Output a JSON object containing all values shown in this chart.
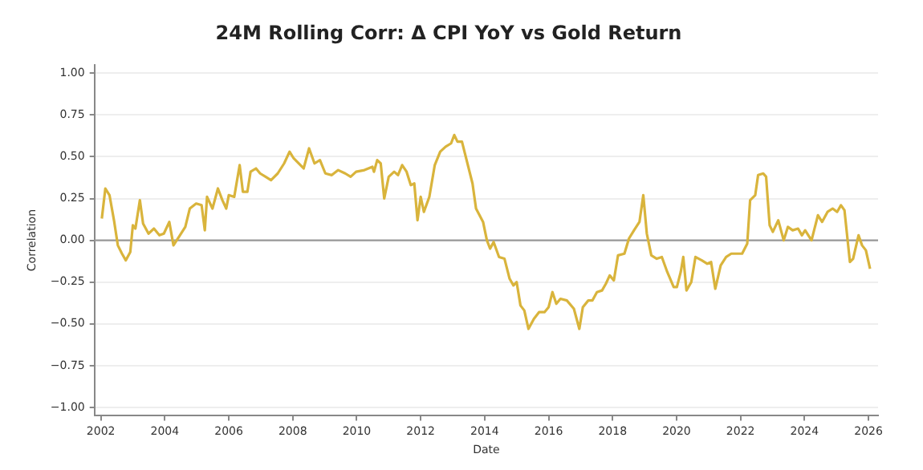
{
  "chart_data": {
    "type": "line",
    "title": "24M Rolling Corr: Δ CPI YoY vs Gold Return",
    "xlabel": "Date",
    "ylabel": "Correlation",
    "x": [
      2002.03,
      2002.14,
      2002.27,
      2002.41,
      2002.53,
      2002.66,
      2002.78,
      2002.92,
      2003.0,
      2003.08,
      2003.22,
      2003.32,
      2003.49,
      2003.66,
      2003.83,
      2003.97,
      2004.14,
      2004.27,
      2004.44,
      2004.64,
      2004.78,
      2004.98,
      2005.15,
      2005.25,
      2005.32,
      2005.49,
      2005.66,
      2005.8,
      2005.92,
      2006.0,
      2006.17,
      2006.34,
      2006.44,
      2006.58,
      2006.68,
      2006.85,
      2006.98,
      2007.15,
      2007.32,
      2007.53,
      2007.73,
      2007.9,
      2008.03,
      2008.34,
      2008.51,
      2008.68,
      2008.85,
      2009.02,
      2009.22,
      2009.42,
      2009.64,
      2009.81,
      2009.98,
      2010.24,
      2010.49,
      2010.54,
      2010.64,
      2010.75,
      2010.86,
      2011.0,
      2011.17,
      2011.29,
      2011.42,
      2011.56,
      2011.69,
      2011.8,
      2011.9,
      2012.0,
      2012.1,
      2012.27,
      2012.44,
      2012.61,
      2012.78,
      2012.95,
      2013.05,
      2013.15,
      2013.29,
      2013.62,
      2013.73,
      2013.95,
      2014.07,
      2014.17,
      2014.28,
      2014.45,
      2014.62,
      2014.78,
      2014.9,
      2015.0,
      2015.12,
      2015.24,
      2015.37,
      2015.54,
      2015.7,
      2015.87,
      2016.0,
      2016.12,
      2016.24,
      2016.37,
      2016.57,
      2016.79,
      2016.96,
      2017.07,
      2017.24,
      2017.37,
      2017.51,
      2017.67,
      2017.79,
      2017.91,
      2018.04,
      2018.17,
      2018.37,
      2018.51,
      2018.67,
      2018.84,
      2018.96,
      2019.07,
      2019.21,
      2019.38,
      2019.54,
      2019.71,
      2019.91,
      2020.01,
      2020.13,
      2020.21,
      2020.31,
      2020.46,
      2020.59,
      2020.79,
      2020.96,
      2021.08,
      2021.21,
      2021.38,
      2021.55,
      2021.71,
      2021.85,
      2022.05,
      2022.21,
      2022.3,
      2022.46,
      2022.55,
      2022.71,
      2022.8,
      2022.91,
      2023.01,
      2023.18,
      2023.35,
      2023.48,
      2023.63,
      2023.8,
      2023.92,
      2024.02,
      2024.22,
      2024.42,
      2024.55,
      2024.72,
      2024.88,
      2025.02,
      2025.14,
      2025.25,
      2025.42,
      2025.52,
      2025.69,
      2025.8,
      2025.92,
      2026.05
    ],
    "series": [
      {
        "color": "#d9b43c",
        "values": [
          0.13,
          0.31,
          0.27,
          0.12,
          -0.03,
          -0.08,
          -0.12,
          -0.07,
          0.09,
          0.07,
          0.24,
          0.1,
          0.04,
          0.07,
          0.03,
          0.04,
          0.11,
          -0.03,
          0.02,
          0.08,
          0.19,
          0.22,
          0.21,
          0.06,
          0.26,
          0.19,
          0.31,
          0.24,
          0.19,
          0.27,
          0.26,
          0.45,
          0.29,
          0.29,
          0.41,
          0.43,
          0.4,
          0.38,
          0.36,
          0.4,
          0.46,
          0.53,
          0.49,
          0.43,
          0.55,
          0.46,
          0.48,
          0.4,
          0.39,
          0.42,
          0.4,
          0.38,
          0.41,
          0.42,
          0.44,
          0.41,
          0.48,
          0.46,
          0.25,
          0.38,
          0.41,
          0.39,
          0.45,
          0.41,
          0.33,
          0.34,
          0.12,
          0.26,
          0.17,
          0.26,
          0.45,
          0.53,
          0.56,
          0.58,
          0.63,
          0.59,
          0.59,
          0.34,
          0.19,
          0.11,
          0.0,
          -0.05,
          -0.01,
          -0.1,
          -0.11,
          -0.23,
          -0.27,
          -0.25,
          -0.39,
          -0.42,
          -0.53,
          -0.47,
          -0.43,
          -0.43,
          -0.4,
          -0.31,
          -0.38,
          -0.35,
          -0.36,
          -0.41,
          -0.53,
          -0.4,
          -0.36,
          -0.36,
          -0.31,
          -0.3,
          -0.26,
          -0.21,
          -0.24,
          -0.09,
          -0.08,
          0.01,
          0.06,
          0.11,
          0.27,
          0.04,
          -0.09,
          -0.11,
          -0.1,
          -0.19,
          -0.28,
          -0.28,
          -0.19,
          -0.1,
          -0.3,
          -0.25,
          -0.1,
          -0.12,
          -0.14,
          -0.13,
          -0.29,
          -0.15,
          -0.1,
          -0.08,
          -0.08,
          -0.08,
          -0.02,
          0.24,
          0.27,
          0.39,
          0.4,
          0.38,
          0.09,
          0.05,
          0.12,
          0.0,
          0.08,
          0.06,
          0.07,
          0.03,
          0.06,
          0.0,
          0.15,
          0.11,
          0.17,
          0.19,
          0.17,
          0.21,
          0.18,
          -0.13,
          -0.11,
          0.03,
          -0.03,
          -0.06,
          -0.17
        ]
      }
    ],
    "xlim": [
      2001.8,
      2026.3
    ],
    "xticks": [
      2002,
      2004,
      2006,
      2008,
      2010,
      2012,
      2014,
      2016,
      2018,
      2020,
      2022,
      2024,
      2026
    ],
    "ylim": [
      -1.05,
      1.05
    ],
    "yticks": [
      {
        "value": -1,
        "label": "−1.00"
      },
      {
        "value": -0.75,
        "label": "−0.75"
      },
      {
        "value": -0.5,
        "label": "−0.50"
      },
      {
        "value": -0.25,
        "label": "−0.25"
      },
      {
        "value": 0,
        "label": "0.00"
      },
      {
        "value": 0.25,
        "label": "0.25"
      },
      {
        "value": 0.5,
        "label": "0.50"
      },
      {
        "value": 0.75,
        "label": "0.75"
      },
      {
        "value": 1,
        "label": "1.00"
      }
    ],
    "ref_lines": [
      {
        "axis": "y",
        "value": 0,
        "color": "#999999"
      }
    ],
    "grid": "y",
    "legend": false,
    "marker": "none",
    "line_style": "solid"
  }
}
